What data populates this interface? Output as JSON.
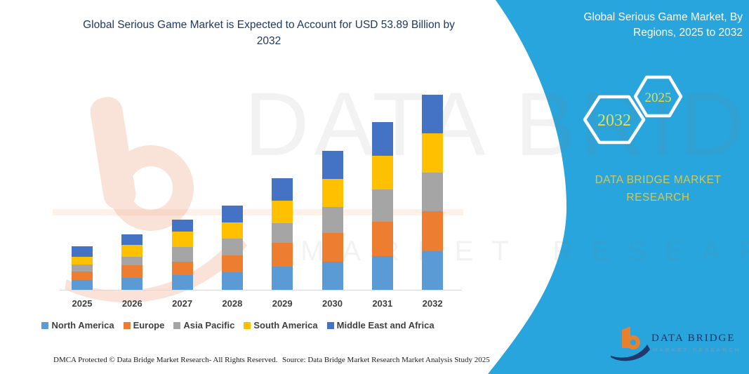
{
  "main_title": {
    "line1": "Global Serious Game Market is Expected to Account for USD 53.89 Billion by",
    "line2": "2032"
  },
  "side_panel": {
    "title_line1": "Global Serious Game Market, By",
    "title_line2": "Regions, 2025 to 2032",
    "hexagons": [
      {
        "label": "2032"
      },
      {
        "label": "2025"
      }
    ],
    "brand_text": "DATA BRIDGE MARKET RESEARCH",
    "colors": {
      "band_blue": "#27A5DC",
      "hex_outline": "#FFFFFF",
      "hex_label_yellow": "#E8DF4E",
      "brand_text_yellow": "#D8C751"
    }
  },
  "chart_data": {
    "type": "bar",
    "stacked": true,
    "title": "Global Serious Game Market, By Regions, 2025 to 2032",
    "unit": "USD Billion",
    "values_estimated_from_pixels": true,
    "categories": [
      "2025",
      "2026",
      "2027",
      "2028",
      "2029",
      "2030",
      "2031",
      "2032"
    ],
    "series": [
      {
        "name": "North America",
        "color": "#5B9BD5",
        "values": [
          2.7,
          3.4,
          4.1,
          4.9,
          6.5,
          7.8,
          9.3,
          10.6
        ]
      },
      {
        "name": "Europe",
        "color": "#ED7D31",
        "values": [
          2.3,
          3.4,
          3.7,
          4.7,
          6.5,
          7.9,
          9.6,
          11.1
        ]
      },
      {
        "name": "Asia Pacific",
        "color": "#A5A5A5",
        "values": [
          1.9,
          2.4,
          4.0,
          4.5,
          5.5,
          7.2,
          8.9,
          10.7
        ]
      },
      {
        "name": "South America",
        "color": "#FFC000",
        "values": [
          2.3,
          3.2,
          4.3,
          4.5,
          6.1,
          7.8,
          9.2,
          10.9
        ]
      },
      {
        "name": "Middle East and Africa",
        "color": "#4472C4",
        "values": [
          2.8,
          3.0,
          3.4,
          4.7,
          6.3,
          7.8,
          9.4,
          10.7
        ]
      }
    ],
    "totals": [
      12.0,
      15.4,
      19.5,
      23.3,
      30.9,
      38.5,
      46.4,
      53.89
    ],
    "ylim": [
      0,
      55
    ],
    "legend_position": "bottom",
    "gridlines": false
  },
  "footer": {
    "dmca": "DMCA Protected © Data Bridge Market Research- All Rights Reserved.",
    "source": "Source: Data Bridge Market Research Market Analysis Study 2025"
  },
  "logo": {
    "name_text": "DATA BRIDGE",
    "sub_text": "MARKET RESEARCH"
  },
  "watermark": {
    "big_text": "DATA BRIDGE",
    "sub_text": "MARKET RESEARCH"
  }
}
